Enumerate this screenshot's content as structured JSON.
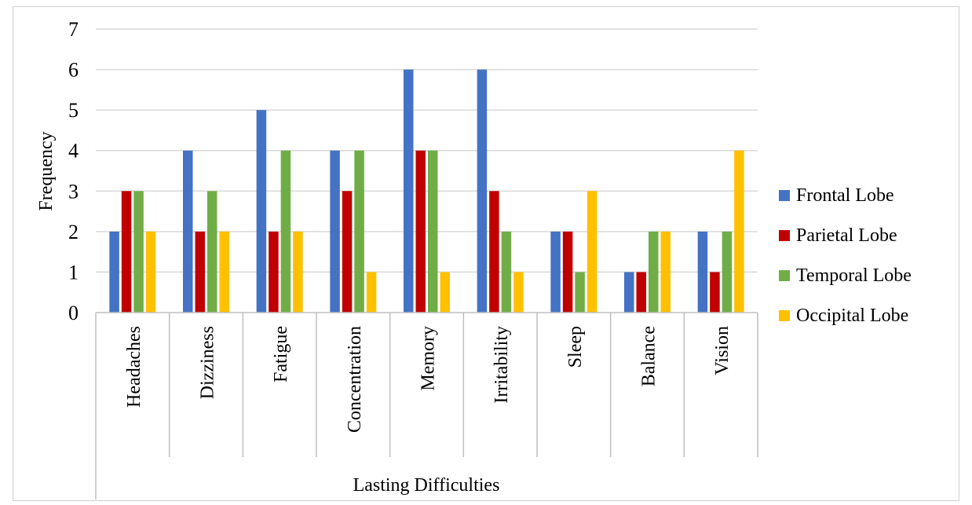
{
  "chart_data": {
    "type": "bar",
    "title": "",
    "xlabel": "Lasting Difficulties",
    "ylabel": "Frequency",
    "ylim": [
      0,
      7
    ],
    "yticks": [
      0,
      1,
      2,
      3,
      4,
      5,
      6,
      7
    ],
    "grid": true,
    "legend_position": "right",
    "categories": [
      "Headaches",
      "Dizziness",
      "Fatigue",
      "Concentration",
      "Memory",
      "Irritability",
      "Sleep",
      "Balance",
      "Vision"
    ],
    "series": [
      {
        "name": "Frontal Lobe",
        "color": "#4472C4",
        "values": [
          2,
          4,
          5,
          4,
          6,
          6,
          2,
          1,
          2
        ]
      },
      {
        "name": "Parietal Lobe",
        "color": "#C00000",
        "values": [
          3,
          2,
          2,
          3,
          4,
          3,
          2,
          1,
          1
        ]
      },
      {
        "name": "Temporal Lobe",
        "color": "#70AD47",
        "values": [
          3,
          3,
          4,
          4,
          4,
          2,
          1,
          2,
          2
        ]
      },
      {
        "name": "Occipital Lobe",
        "color": "#FFC000",
        "values": [
          2,
          2,
          2,
          1,
          1,
          1,
          3,
          2,
          4
        ]
      }
    ]
  }
}
